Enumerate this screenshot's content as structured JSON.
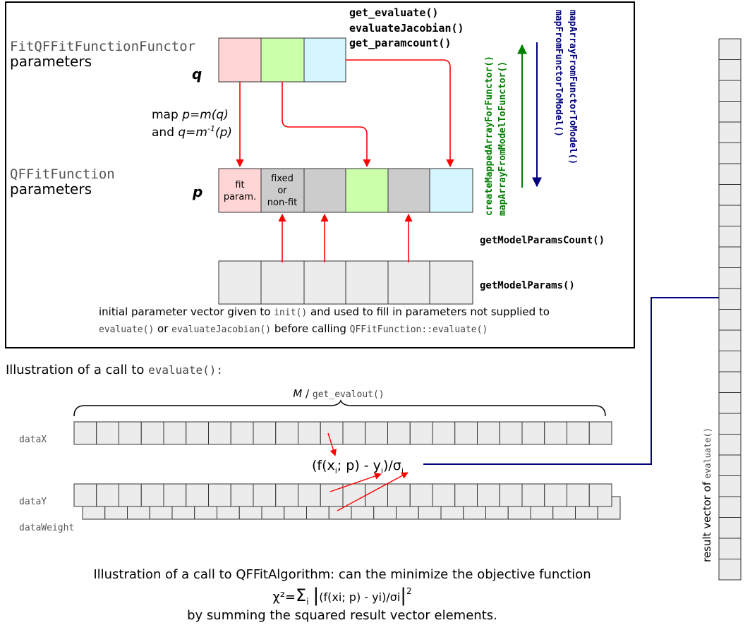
{
  "top_box": {
    "functor_label_mono": "FitQFFitFunctionFunctor",
    "functor_label_sans": "parameters",
    "q_symbol": "q",
    "function_label_mono": "QFFitFunction",
    "function_label_sans": "parameters",
    "p_symbol": "p",
    "map_line1": "map p=m(q)",
    "map_line2_pre": "and q=m",
    "map_line2_sup": "-1",
    "map_line2_post": "(p)",
    "right_methods": [
      "get_evaluate()",
      "evaluateJacobian()",
      "get_paramcount()"
    ],
    "vertical_green": [
      "createMappedArrayForFunctor()",
      "mapArrayFromModelToFunctor()"
    ],
    "vertical_blue": [
      "mapArrayFromFunctorToModel()",
      "mapFromFunctorToModel()"
    ],
    "model_params_count": "getModelParamsCount()",
    "model_params": "getModelParams()",
    "fit_param_lines": [
      "fit",
      "param."
    ],
    "fixed_lines": [
      "fixed",
      "or",
      "non-fit"
    ],
    "caption_line1_a": "initial parameter vector given to ",
    "caption_line1_code": "init()",
    "caption_line1_b": " and used to fill in parameters not supplied to",
    "caption_line2_code1": "evaluate()",
    "caption_line2_or": " or ",
    "caption_line2_code2": "evaluateJacobian()",
    "caption_line2_b": " before calling ",
    "caption_line2_code3": "QFFitFunction::evaluate()"
  },
  "colors": {
    "pink": "#ffd5d5",
    "green": "#ccffaa",
    "cyan": "#d5f6ff",
    "gray": "#cccccc",
    "lightgray": "#ececec",
    "red_arrow": "#ff0000",
    "navy": "#000080",
    "dark_green": "#008000"
  },
  "call_section": {
    "title_sans": "Illustration of a call to ",
    "title_code": "evaluate():",
    "brace_italic": "M",
    "brace_sep": " / ",
    "brace_code": "get_evalout()",
    "dataX": "dataX",
    "dataY": "dataY",
    "dataWeight": "dataWeight",
    "formula_a": "(f(x",
    "formula_sub_i1": "i",
    "formula_b": "; p) - y",
    "formula_sub_i2": "i",
    "formula_c": ")/σ",
    "formula_sub_i3": "i"
  },
  "result_vector": {
    "label_sans": "result vector of ",
    "label_code": "evaluate()"
  },
  "bottom": {
    "line1": "Illustration of a call to QFFitAlgorithm: can the minimize the objective function",
    "line2_a": "χ²=",
    "line2_sum": "Σ",
    "line2_sub": "i",
    "line2_bar_open": "|",
    "line2_inner": "(f(xi; p) - yi)/σi",
    "line2_bar_close": "|",
    "line2_sup": "2",
    "line3": "by summing the squared result vector elements."
  }
}
